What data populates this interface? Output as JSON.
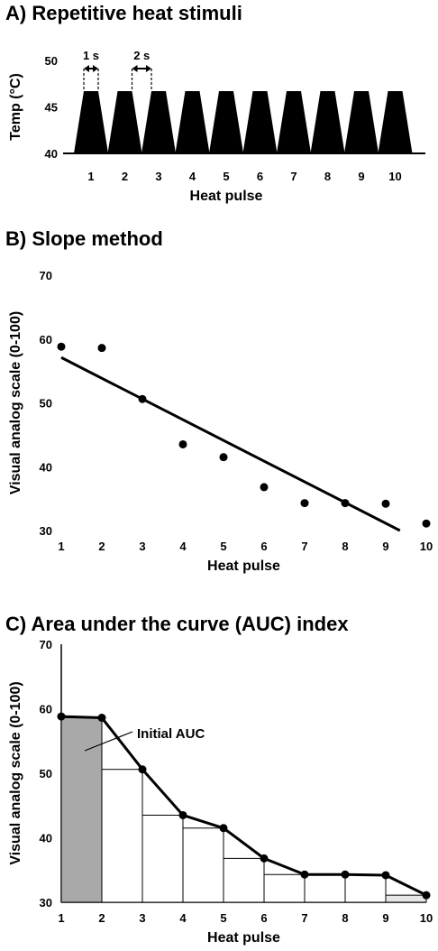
{
  "chart_data": [
    {
      "type": "area",
      "title": "A) Repetitive heat stimuli",
      "xlabel": "Heat pulse",
      "ylabel": "Temp (°C)",
      "categories": [
        "1",
        "2",
        "3",
        "4",
        "5",
        "6",
        "7",
        "8",
        "9",
        "10"
      ],
      "y_ticks": [
        "40",
        "45",
        "50"
      ],
      "ylim": [
        40,
        50
      ],
      "baseline_temp": 40,
      "peak_temp": 46.7,
      "annotations": [
        "1 s",
        "2 s"
      ],
      "fill_color": "#000000"
    },
    {
      "type": "scatter",
      "title": "B) Slope method",
      "xlabel": "Heat pulse",
      "ylabel": "Visual analog scale (0-100)",
      "x": [
        1,
        2,
        3,
        4,
        5,
        6,
        7,
        8,
        9,
        10
      ],
      "y": [
        58.8,
        58.6,
        50.6,
        43.5,
        41.5,
        36.8,
        34.3,
        34.3,
        34.2,
        31.1
      ],
      "x_ticks": [
        "1",
        "2",
        "3",
        "4",
        "5",
        "6",
        "7",
        "8",
        "9",
        "10"
      ],
      "y_ticks": [
        "30",
        "40",
        "50",
        "60",
        "70"
      ],
      "xlim": [
        1,
        10
      ],
      "ylim": [
        30,
        70
      ],
      "trendline": {
        "x": [
          1,
          9.35
        ],
        "y": [
          57.1,
          30
        ]
      },
      "point_color": "#000000"
    },
    {
      "type": "line",
      "title": "C) Area under the curve (AUC) index",
      "xlabel": "Heat pulse",
      "ylabel": "Visual analog scale (0-100)",
      "x": [
        1,
        2,
        3,
        4,
        5,
        6,
        7,
        8,
        9,
        10
      ],
      "y": [
        58.8,
        58.6,
        50.6,
        43.5,
        41.5,
        36.8,
        34.3,
        34.3,
        34.2,
        31.1
      ],
      "x_ticks": [
        "1",
        "2",
        "3",
        "4",
        "5",
        "6",
        "7",
        "8",
        "9",
        "10"
      ],
      "y_ticks": [
        "30",
        "40",
        "50",
        "60",
        "70"
      ],
      "xlim": [
        1,
        10
      ],
      "ylim": [
        30,
        70
      ],
      "highlight_label": "Initial AUC",
      "highlight_color": "#a9a9a9",
      "last_segment_color": "#e6e6e6"
    }
  ]
}
